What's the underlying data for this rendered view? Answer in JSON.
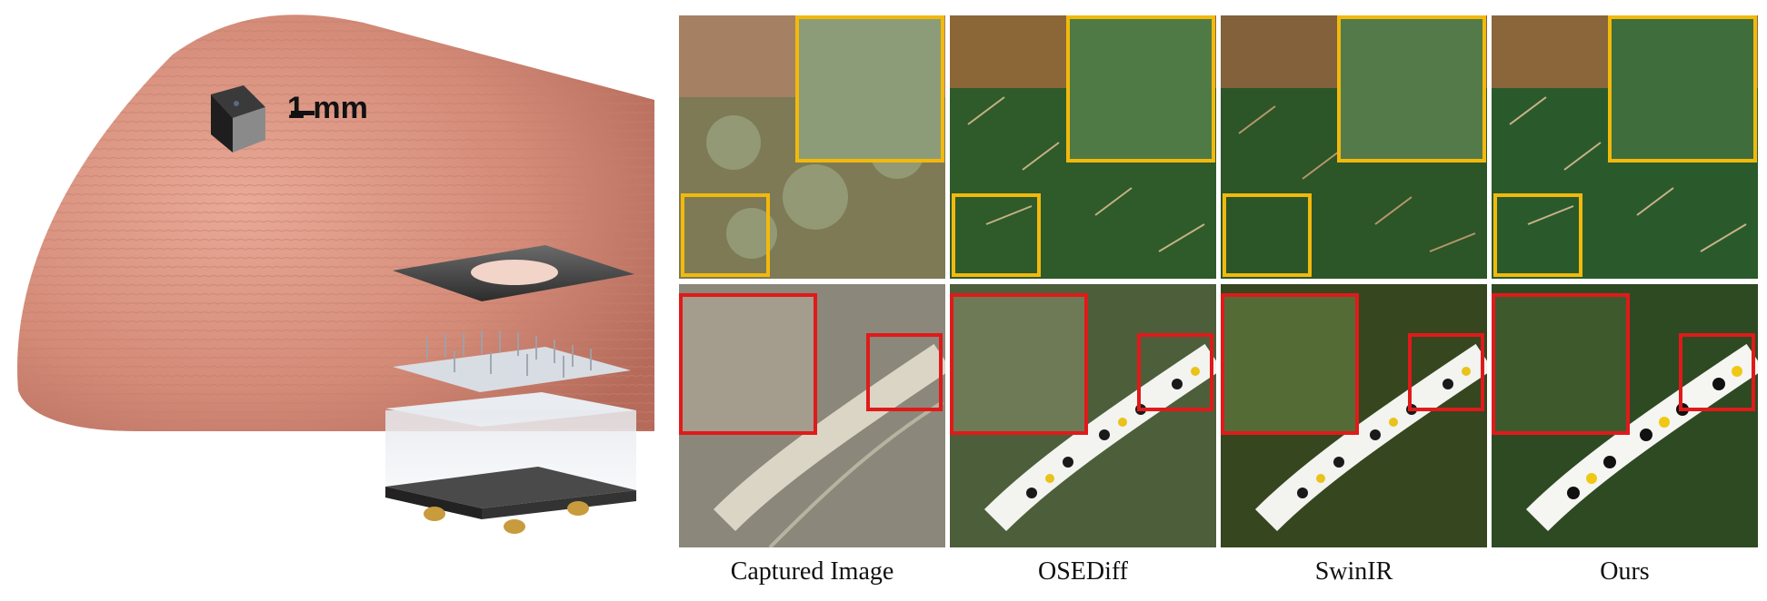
{
  "scale_label": "1 mm",
  "methods": [
    "Captured Image",
    "OSEDiff",
    "SwinIR",
    "Ours"
  ],
  "rows": [
    "cactus",
    "caterpillar"
  ],
  "inset_colors": {
    "cactus": "#f2b90c",
    "caterpillar": "#e01a1a"
  }
}
